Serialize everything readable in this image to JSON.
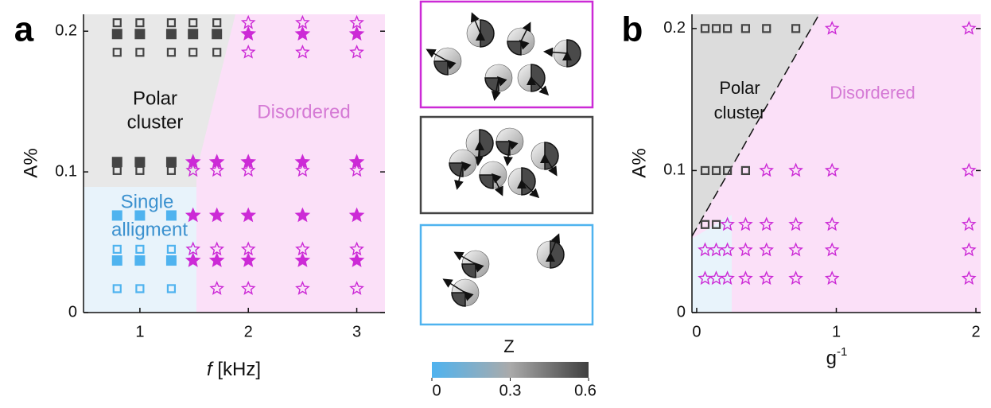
{
  "chart_data": [
    {
      "type": "scatter",
      "panel": "a",
      "xlabel": {
        "italic": "f",
        "rest": " [kHz]"
      },
      "ylabel": "A%",
      "xlim": [
        0.48,
        3.26
      ],
      "ylim": [
        0,
        0.212
      ],
      "xticks": [
        1,
        2,
        3
      ],
      "yticks": [
        0,
        0.1,
        0.2
      ],
      "regions": [
        {
          "lines": [
            "Polar",
            "cluster"
          ],
          "color": "#111111"
        },
        {
          "lines": [
            "Disordered"
          ],
          "color": "#d57ad5"
        },
        {
          "lines": [
            "Single",
            "alligment"
          ],
          "color": "#3b91cf"
        }
      ],
      "series": [
        {
          "marker": "square",
          "filled": false,
          "color": "#444444",
          "x": [
            0.79,
            1.0,
            1.29,
            1.49,
            1.71
          ],
          "y": [
            0.206,
            0.206,
            0.206,
            0.206,
            0.206
          ]
        },
        {
          "marker": "square",
          "filled": true,
          "color": "#444444",
          "x": [
            0.79,
            1.0,
            1.29,
            1.49,
            1.71
          ],
          "y": [
            0.198,
            0.198,
            0.198,
            0.198,
            0.198
          ]
        },
        {
          "marker": "square",
          "filled": false,
          "color": "#444444",
          "x": [
            0.79,
            1.0,
            1.29,
            1.49,
            1.71
          ],
          "y": [
            0.185,
            0.185,
            0.185,
            0.185,
            0.185
          ]
        },
        {
          "marker": "square",
          "filled": true,
          "color": "#444444",
          "x": [
            0.79,
            1.0,
            1.29
          ],
          "y": [
            0.107,
            0.107,
            0.107
          ]
        },
        {
          "marker": "square",
          "filled": false,
          "color": "#444444",
          "x": [
            0.79,
            1.0,
            1.29
          ],
          "y": [
            0.101,
            0.101,
            0.101
          ]
        },
        {
          "marker": "square",
          "filled": true,
          "color": "#4fb3ef",
          "x": [
            0.79,
            1.0,
            1.29
          ],
          "y": [
            0.069,
            0.069,
            0.069
          ]
        },
        {
          "marker": "square",
          "filled": false,
          "color": "#4fb3ef",
          "x": [
            0.79,
            1.0,
            1.29
          ],
          "y": [
            0.045,
            0.045,
            0.045
          ]
        },
        {
          "marker": "square",
          "filled": true,
          "color": "#4fb3ef",
          "x": [
            0.79,
            1.0,
            1.29
          ],
          "y": [
            0.037,
            0.037,
            0.037
          ]
        },
        {
          "marker": "square",
          "filled": false,
          "color": "#4fb3ef",
          "x": [
            0.79,
            1.0,
            1.29
          ],
          "y": [
            0.017,
            0.017,
            0.017
          ]
        },
        {
          "marker": "star",
          "filled": false,
          "color": "#cc2ad6",
          "x": [
            2.0,
            2.5,
            3.0
          ],
          "y": [
            0.206,
            0.206,
            0.206
          ]
        },
        {
          "marker": "star",
          "filled": true,
          "color": "#cc2ad6",
          "x": [
            2.0,
            2.5,
            3.0
          ],
          "y": [
            0.198,
            0.198,
            0.198
          ]
        },
        {
          "marker": "star",
          "filled": false,
          "color": "#cc2ad6",
          "x": [
            2.0,
            2.5,
            3.0
          ],
          "y": [
            0.185,
            0.185,
            0.185
          ]
        },
        {
          "marker": "star",
          "filled": true,
          "color": "#cc2ad6",
          "x": [
            1.49,
            1.71,
            2.0,
            2.5,
            3.0
          ],
          "y": [
            0.107,
            0.107,
            0.107,
            0.107,
            0.107
          ]
        },
        {
          "marker": "star",
          "filled": false,
          "color": "#cc2ad6",
          "x": [
            1.49,
            1.71,
            2.0,
            2.5,
            3.0
          ],
          "y": [
            0.101,
            0.101,
            0.101,
            0.101,
            0.101
          ]
        },
        {
          "marker": "star",
          "filled": true,
          "color": "#cc2ad6",
          "x": [
            1.49,
            1.71,
            2.0,
            2.5,
            3.0
          ],
          "y": [
            0.069,
            0.069,
            0.069,
            0.069,
            0.069
          ]
        },
        {
          "marker": "star",
          "filled": false,
          "color": "#cc2ad6",
          "x": [
            1.49,
            1.71,
            2.0,
            2.5,
            3.0
          ],
          "y": [
            0.045,
            0.045,
            0.045,
            0.045,
            0.045
          ]
        },
        {
          "marker": "star",
          "filled": true,
          "color": "#cc2ad6",
          "x": [
            1.49,
            1.71,
            2.0,
            2.5,
            3.0
          ],
          "y": [
            0.037,
            0.037,
            0.037,
            0.037,
            0.037
          ]
        },
        {
          "marker": "star",
          "filled": false,
          "color": "#cc2ad6",
          "x": [
            1.71,
            2.0,
            2.5,
            3.0
          ],
          "y": [
            0.017,
            0.017,
            0.017,
            0.017
          ]
        }
      ]
    },
    {
      "type": "scatter",
      "panel": "b",
      "xlabel": {
        "base": "g",
        "sup": "-1"
      },
      "ylabel": "A%",
      "xlim": [
        -0.034,
        2.034
      ],
      "ylim": [
        0,
        0.21
      ],
      "xticks": [
        0,
        1,
        2
      ],
      "yticks": [
        0,
        0.1,
        0.2
      ],
      "regions": [
        {
          "lines": [
            "Polar",
            "cluster"
          ],
          "color": "#111111"
        },
        {
          "lines": [
            "Disordered"
          ],
          "color": "#d57ad5"
        }
      ],
      "series": [
        {
          "marker": "square",
          "filled": false,
          "color": "#444444",
          "x": [
            0.06,
            0.14,
            0.22,
            0.35,
            0.5,
            0.71
          ],
          "y": [
            0.2,
            0.2,
            0.2,
            0.2,
            0.2,
            0.2
          ]
        },
        {
          "marker": "square",
          "filled": false,
          "color": "#444444",
          "x": [
            0.06,
            0.14,
            0.22,
            0.35
          ],
          "y": [
            0.1,
            0.1,
            0.1,
            0.1
          ]
        },
        {
          "marker": "square",
          "filled": false,
          "color": "#444444",
          "x": [
            0.06,
            0.14
          ],
          "y": [
            0.062,
            0.062
          ]
        },
        {
          "marker": "star",
          "filled": false,
          "color": "#cc2ad6",
          "x": [
            0.97,
            1.95
          ],
          "y": [
            0.2,
            0.2
          ]
        },
        {
          "marker": "star",
          "filled": false,
          "color": "#cc2ad6",
          "x": [
            0.5,
            0.71,
            0.97,
            1.95
          ],
          "y": [
            0.1,
            0.1,
            0.1,
            0.1
          ]
        },
        {
          "marker": "star",
          "filled": false,
          "color": "#cc2ad6",
          "x": [
            0.22,
            0.35,
            0.5,
            0.71,
            0.97,
            1.95
          ],
          "y": [
            0.062,
            0.062,
            0.062,
            0.062,
            0.062,
            0.062
          ]
        },
        {
          "marker": "star",
          "filled": false,
          "color": "#cc2ad6",
          "x": [
            0.06,
            0.14,
            0.22,
            0.35,
            0.5,
            0.71,
            0.97,
            1.95
          ],
          "y": [
            0.044,
            0.044,
            0.044,
            0.044,
            0.044,
            0.044,
            0.044,
            0.044
          ]
        },
        {
          "marker": "star",
          "filled": false,
          "color": "#cc2ad6",
          "x": [
            0.06,
            0.14,
            0.22,
            0.35,
            0.5,
            0.71,
            0.97,
            1.95
          ],
          "y": [
            0.024,
            0.024,
            0.024,
            0.024,
            0.024,
            0.024,
            0.024,
            0.024
          ]
        }
      ]
    }
  ],
  "colorbar": {
    "label": "Z",
    "lim": [
      0,
      0.6
    ],
    "ticks": [
      0,
      0.3,
      0.6
    ]
  }
}
